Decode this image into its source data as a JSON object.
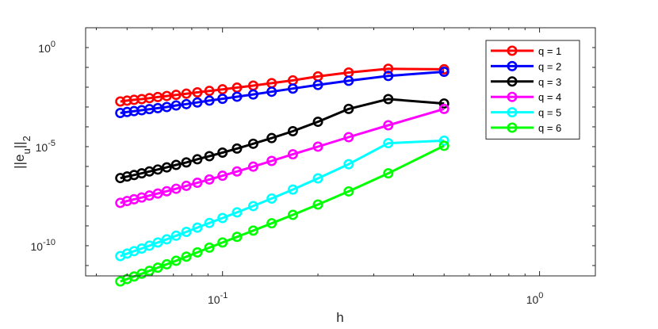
{
  "chart_data": {
    "type": "line",
    "xlabel": "h",
    "ylabel": "||e_u||_2",
    "x_scale": "log",
    "y_scale": "log",
    "xlim": [
      0.037,
      1.5
    ],
    "ylim": [
      3e-12,
      10
    ],
    "x_ticks": [
      {
        "value": 0.1,
        "base": "10",
        "exp": "-1"
      },
      {
        "value": 1,
        "base": "10",
        "exp": "0"
      }
    ],
    "y_ticks": [
      {
        "value": 1,
        "base": "10",
        "exp": "0"
      },
      {
        "value": 1e-05,
        "base": "10",
        "exp": "-5"
      },
      {
        "value": 1e-10,
        "base": "10",
        "exp": "-10"
      }
    ],
    "grid": false,
    "legend_position": "top-right",
    "x": [
      0.5,
      0.3333,
      0.25,
      0.2,
      0.1667,
      0.1429,
      0.125,
      0.1111,
      0.1,
      0.0909,
      0.0833,
      0.0769,
      0.0714,
      0.0667,
      0.0625,
      0.0588,
      0.0556,
      0.0526,
      0.05,
      0.0476
    ],
    "series": [
      {
        "name": "q = 1",
        "color": "#ff0000",
        "values": [
          0.08,
          0.085,
          0.055,
          0.035,
          0.022,
          0.016,
          0.012,
          0.0095,
          0.0078,
          0.0065,
          0.0055,
          0.0047,
          0.0041,
          0.0036,
          0.0032,
          0.0028,
          0.0025,
          0.0023,
          0.0021,
          0.0019
        ]
      },
      {
        "name": "q = 2",
        "color": "#0000ff",
        "values": [
          0.06,
          0.037,
          0.021,
          0.013,
          0.0085,
          0.0059,
          0.0043,
          0.0033,
          0.0026,
          0.0021,
          0.0017,
          0.0014,
          0.0012,
          0.001,
          0.00088,
          0.00078,
          0.00069,
          0.00062,
          0.00056,
          0.0005
        ]
      },
      {
        "name": "q = 3",
        "color": "#000000",
        "values": [
          0.0015,
          0.0025,
          0.0008,
          0.00018,
          6e-05,
          2.7e-05,
          1.4e-05,
          8e-06,
          5e-06,
          3.3e-06,
          2.3e-06,
          1.6e-06,
          1.2e-06,
          9e-07,
          7e-07,
          5.6e-07,
          4.5e-07,
          3.7e-07,
          3.1e-07,
          2.6e-07
        ]
      },
      {
        "name": "q = 4",
        "color": "#ff00ff",
        "values": [
          0.0008,
          0.00012,
          3e-05,
          1e-05,
          4.1e-06,
          1.9e-06,
          9.8e-07,
          5.6e-07,
          3.4e-07,
          2.2e-07,
          1.5e-07,
          1.05e-07,
          7.5e-08,
          5.6e-08,
          4.3e-08,
          3.4e-08,
          2.7e-08,
          2.2e-08,
          1.8e-08,
          1.45e-08
        ]
      },
      {
        "name": "q = 5",
        "color": "#00ffff",
        "values": [
          2e-05,
          1.5e-05,
          1.3e-06,
          2.5e-07,
          6.8e-08,
          2.4e-08,
          1e-08,
          4.8e-09,
          2.5e-09,
          1.4e-09,
          8.2e-10,
          5e-10,
          3.2e-10,
          2.1e-10,
          1.45e-10,
          1e-10,
          7.2e-11,
          5.3e-11,
          4e-11,
          3e-11
        ]
      },
      {
        "name": "q = 6",
        "color": "#00ff00",
        "values": [
          1.1e-05,
          4.5e-07,
          5.5e-08,
          1.2e-08,
          3.6e-09,
          1.35e-09,
          5.8e-10,
          2.8e-10,
          1.45e-10,
          8e-11,
          4.6e-11,
          2.8e-11,
          1.75e-11,
          1.15e-11,
          7.8e-12,
          5.4e-12,
          3.85e-12,
          2.8e-12,
          2.08e-12,
          1.57e-12
        ]
      }
    ]
  }
}
